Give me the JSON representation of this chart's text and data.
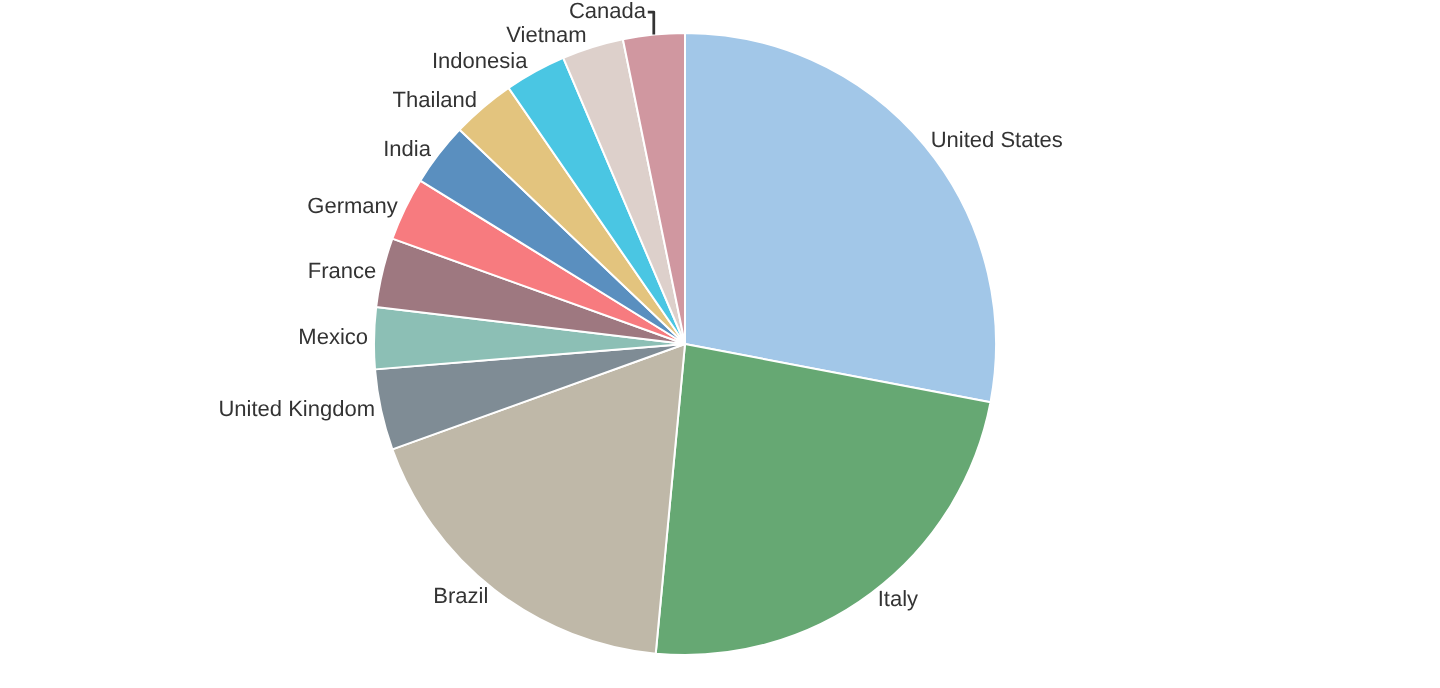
{
  "chart_data": {
    "type": "pie",
    "categories": [
      "United States",
      "Italy",
      "Brazil",
      "United Kingdom",
      "Mexico",
      "France",
      "Germany",
      "India",
      "Thailand",
      "Indonesia",
      "Vietnam",
      "Canada"
    ],
    "values": [
      28,
      23.5,
      18,
      4.2,
      3.2,
      3.6,
      3.3,
      3.3,
      3.3,
      3.2,
      3.2,
      3.2
    ],
    "colors": [
      "#a2c7e8",
      "#66a873",
      "#bfb8a8",
      "#7f8c95",
      "#8cbfb5",
      "#9e7880",
      "#f77b7f",
      "#5a8fbf",
      "#e3c47e",
      "#4ac6e3",
      "#ddd0cb",
      "#d097a0"
    ],
    "legend": false
  }
}
